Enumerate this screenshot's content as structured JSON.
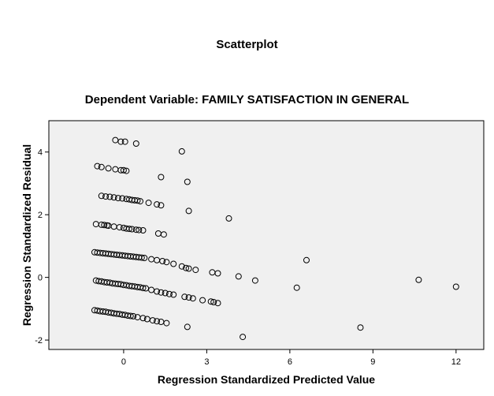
{
  "title": "Scatterplot",
  "subtitle": "Dependent Variable: FAMILY SATISFACTION IN GENERAL",
  "chart_data": {
    "type": "scatter",
    "title": "Scatterplot",
    "subtitle": "Dependent Variable: FAMILY SATISFACTION IN GENERAL",
    "xlabel": "Regression Standardized Predicted Value",
    "ylabel": "Regression Standardized Residual",
    "xlim": [
      -2.7,
      13.0
    ],
    "ylim": [
      -2.3,
      5.0
    ],
    "xticks": [
      0,
      3,
      6,
      9,
      12
    ],
    "yticks": [
      -2,
      0,
      2,
      4
    ],
    "xtick_labels": [
      "0",
      "3",
      "6",
      "9",
      "12"
    ],
    "ytick_labels": [
      "-2",
      "0",
      "2",
      "4"
    ],
    "grid": false,
    "plot_background": "#f0f0f0",
    "marker": "open-circle",
    "marker_color": "#000000",
    "points": [
      [
        -0.3,
        4.38
      ],
      [
        -0.1,
        4.33
      ],
      [
        0.05,
        4.33
      ],
      [
        0.45,
        4.27
      ],
      [
        2.1,
        4.02
      ],
      [
        -0.95,
        3.55
      ],
      [
        -0.8,
        3.52
      ],
      [
        -0.55,
        3.48
      ],
      [
        -0.3,
        3.45
      ],
      [
        -0.1,
        3.42
      ],
      [
        0.0,
        3.42
      ],
      [
        0.1,
        3.4
      ],
      [
        1.35,
        3.2
      ],
      [
        2.3,
        3.05
      ],
      [
        -0.8,
        2.6
      ],
      [
        -0.65,
        2.58
      ],
      [
        -0.5,
        2.57
      ],
      [
        -0.35,
        2.55
      ],
      [
        -0.2,
        2.53
      ],
      [
        -0.05,
        2.52
      ],
      [
        0.1,
        2.5
      ],
      [
        0.2,
        2.49
      ],
      [
        0.3,
        2.47
      ],
      [
        0.4,
        2.46
      ],
      [
        0.5,
        2.45
      ],
      [
        0.6,
        2.43
      ],
      [
        0.9,
        2.38
      ],
      [
        1.2,
        2.33
      ],
      [
        1.35,
        2.3
      ],
      [
        2.35,
        2.12
      ],
      [
        3.8,
        1.88
      ],
      [
        -1.0,
        1.7
      ],
      [
        -0.8,
        1.68
      ],
      [
        -0.7,
        1.67
      ],
      [
        -0.6,
        1.66
      ],
      [
        -0.55,
        1.65
      ],
      [
        -0.35,
        1.62
      ],
      [
        -0.15,
        1.6
      ],
      [
        0.0,
        1.58
      ],
      [
        0.1,
        1.56
      ],
      [
        0.2,
        1.55
      ],
      [
        0.3,
        1.54
      ],
      [
        0.45,
        1.52
      ],
      [
        0.55,
        1.51
      ],
      [
        0.7,
        1.5
      ],
      [
        1.25,
        1.4
      ],
      [
        1.45,
        1.37
      ],
      [
        -1.05,
        0.8
      ],
      [
        -0.95,
        0.79
      ],
      [
        -0.85,
        0.78
      ],
      [
        -0.75,
        0.77
      ],
      [
        -0.65,
        0.76
      ],
      [
        -0.55,
        0.75
      ],
      [
        -0.45,
        0.74
      ],
      [
        -0.35,
        0.73
      ],
      [
        -0.25,
        0.72
      ],
      [
        -0.15,
        0.71
      ],
      [
        -0.05,
        0.7
      ],
      [
        0.05,
        0.69
      ],
      [
        0.15,
        0.68
      ],
      [
        0.25,
        0.67
      ],
      [
        0.35,
        0.66
      ],
      [
        0.45,
        0.65
      ],
      [
        0.55,
        0.64
      ],
      [
        0.65,
        0.63
      ],
      [
        0.75,
        0.62
      ],
      [
        1.0,
        0.58
      ],
      [
        1.2,
        0.55
      ],
      [
        1.4,
        0.52
      ],
      [
        1.55,
        0.49
      ],
      [
        1.8,
        0.43
      ],
      [
        2.1,
        0.35
      ],
      [
        2.25,
        0.3
      ],
      [
        2.35,
        0.28
      ],
      [
        2.6,
        0.24
      ],
      [
        3.2,
        0.16
      ],
      [
        3.4,
        0.13
      ],
      [
        4.15,
        0.03
      ],
      [
        6.6,
        0.55
      ],
      [
        -1.0,
        -0.1
      ],
      [
        -0.9,
        -0.12
      ],
      [
        -0.8,
        -0.13
      ],
      [
        -0.7,
        -0.15
      ],
      [
        -0.6,
        -0.16
      ],
      [
        -0.5,
        -0.17
      ],
      [
        -0.4,
        -0.19
      ],
      [
        -0.3,
        -0.2
      ],
      [
        -0.2,
        -0.21
      ],
      [
        -0.1,
        -0.22
      ],
      [
        0.0,
        -0.24
      ],
      [
        0.1,
        -0.25
      ],
      [
        0.2,
        -0.27
      ],
      [
        0.3,
        -0.28
      ],
      [
        0.4,
        -0.29
      ],
      [
        0.5,
        -0.31
      ],
      [
        0.6,
        -0.32
      ],
      [
        0.7,
        -0.34
      ],
      [
        0.8,
        -0.35
      ],
      [
        1.0,
        -0.4
      ],
      [
        1.2,
        -0.45
      ],
      [
        1.35,
        -0.48
      ],
      [
        1.5,
        -0.5
      ],
      [
        1.65,
        -0.53
      ],
      [
        1.8,
        -0.55
      ],
      [
        2.2,
        -0.62
      ],
      [
        2.35,
        -0.64
      ],
      [
        2.5,
        -0.67
      ],
      [
        2.85,
        -0.73
      ],
      [
        3.15,
        -0.77
      ],
      [
        3.25,
        -0.79
      ],
      [
        3.4,
        -0.82
      ],
      [
        4.75,
        -0.1
      ],
      [
        6.25,
        -0.33
      ],
      [
        10.65,
        -0.08
      ],
      [
        12.0,
        -0.3
      ],
      [
        -1.05,
        -1.05
      ],
      [
        -0.95,
        -1.06
      ],
      [
        -0.85,
        -1.08
      ],
      [
        -0.75,
        -1.09
      ],
      [
        -0.65,
        -1.1
      ],
      [
        -0.55,
        -1.12
      ],
      [
        -0.45,
        -1.13
      ],
      [
        -0.35,
        -1.15
      ],
      [
        -0.25,
        -1.16
      ],
      [
        -0.15,
        -1.17
      ],
      [
        -0.05,
        -1.19
      ],
      [
        0.05,
        -1.2
      ],
      [
        0.15,
        -1.22
      ],
      [
        0.25,
        -1.23
      ],
      [
        0.35,
        -1.24
      ],
      [
        0.5,
        -1.27
      ],
      [
        0.7,
        -1.3
      ],
      [
        0.85,
        -1.33
      ],
      [
        1.05,
        -1.37
      ],
      [
        1.2,
        -1.4
      ],
      [
        1.35,
        -1.42
      ],
      [
        1.55,
        -1.46
      ],
      [
        2.3,
        -1.58
      ],
      [
        4.3,
        -1.9
      ],
      [
        8.55,
        -1.6
      ]
    ]
  }
}
